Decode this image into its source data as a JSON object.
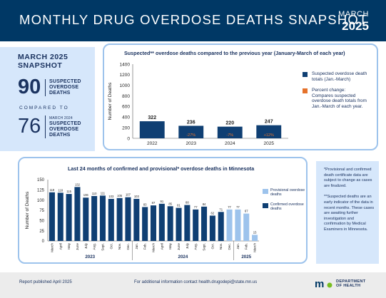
{
  "header": {
    "title": "MONTHLY DRUG OVERDOSE DEATHS SNAPSHOT",
    "month": "MARCH",
    "year": "2025"
  },
  "snapshot": {
    "title_line1": "MARCH 2025",
    "title_line2": "SNAPSHOT",
    "current_value": "90",
    "current_label_line1": "SUSPECTED",
    "current_label_line2": "OVERDOSE",
    "current_label_line3": "DEATHS",
    "compared_to": "COMPARED TO",
    "previous_value": "76",
    "previous_sub": "MARCH 2024",
    "previous_label_line1": "SUSPECTED",
    "previous_label_line2": "OVERDOSE",
    "previous_label_line3": "DEATHS"
  },
  "legend1": {
    "bar_label": "Suspected overdose death totals (Jan.-March)",
    "change_label": "Percent change:",
    "change_desc": "Compares suspected overdose death totals from Jan.-March of each year."
  },
  "legend2": {
    "provisional": "Provisional overdose deaths",
    "confirmed": "Confirmed overdose deaths"
  },
  "notes": {
    "note1": "*Provisional and confirmed death certificate data are subject to change as cases are finalized.",
    "note2": "**Suspected deaths are an early indicator of the data in recent months. These cases are awaiting further investigation and confirmation by Medical Examiners in Minnesota."
  },
  "footer": {
    "published": "Report published April 2025",
    "contact": "For additional information contact health.drugodepi@state.mn.us",
    "logo_line1": "DEPARTMENT",
    "logo_line2": "OF HEALTH",
    "logo_mark": "m"
  },
  "colors": {
    "navy": "#003865",
    "confirmed": "#0f3f73",
    "provisional": "#9dc3ec",
    "percent_change": "#e5722b",
    "panel_border": "#9dc3ec",
    "light_bg": "#d6e7fb"
  },
  "chart_data": [
    {
      "type": "bar",
      "title": "Suspected** overdose deaths compared to the previous year (January-March of each year)",
      "ylabel": "Number of Deaths",
      "categories": [
        "2022",
        "2023",
        "2024",
        "2025"
      ],
      "values": [
        322,
        236,
        220,
        247
      ],
      "percent_change": [
        "",
        "-27%",
        "-7%",
        "+12%"
      ],
      "ylim": [
        0,
        1400
      ],
      "yticks": [
        0,
        200,
        400,
        600,
        800,
        1000,
        1200,
        1400
      ]
    },
    {
      "type": "bar",
      "title": "Last 24 months of confirmed and provisional* overdose deaths in Minnesota",
      "ylabel": "Number of Deaths",
      "categories": [
        "March",
        "April",
        "May",
        "June",
        "July",
        "Aug.",
        "Sept.",
        "Oct.",
        "Nov.",
        "Dec.",
        "Jan.",
        "Feb.",
        "March",
        "April",
        "May",
        "June",
        "July",
        "Aug.",
        "Sept.",
        "Oct.",
        "Nov.",
        "Dec.",
        "Jan.",
        "Feb.",
        "March"
      ],
      "values": [
        119,
        118,
        115,
        132,
        106,
        110,
        111,
        103,
        105,
        107,
        103,
        83,
        87,
        91,
        85,
        81,
        88,
        77,
        84,
        62,
        71,
        77,
        77,
        67,
        15
      ],
      "status": [
        "confirmed",
        "confirmed",
        "confirmed",
        "confirmed",
        "confirmed",
        "confirmed",
        "confirmed",
        "confirmed",
        "confirmed",
        "confirmed",
        "confirmed",
        "confirmed",
        "confirmed",
        "confirmed",
        "confirmed",
        "confirmed",
        "confirmed",
        "confirmed",
        "confirmed",
        "confirmed",
        "confirmed",
        "provisional",
        "provisional",
        "provisional",
        "provisional"
      ],
      "year_groups": [
        {
          "label": "2023",
          "start": 0,
          "end": 9
        },
        {
          "label": "2024",
          "start": 10,
          "end": 21
        },
        {
          "label": "2025",
          "start": 22,
          "end": 24
        }
      ],
      "ylim": [
        0,
        150
      ],
      "yticks": [
        0,
        25,
        50,
        75,
        100,
        125,
        150
      ]
    }
  ]
}
